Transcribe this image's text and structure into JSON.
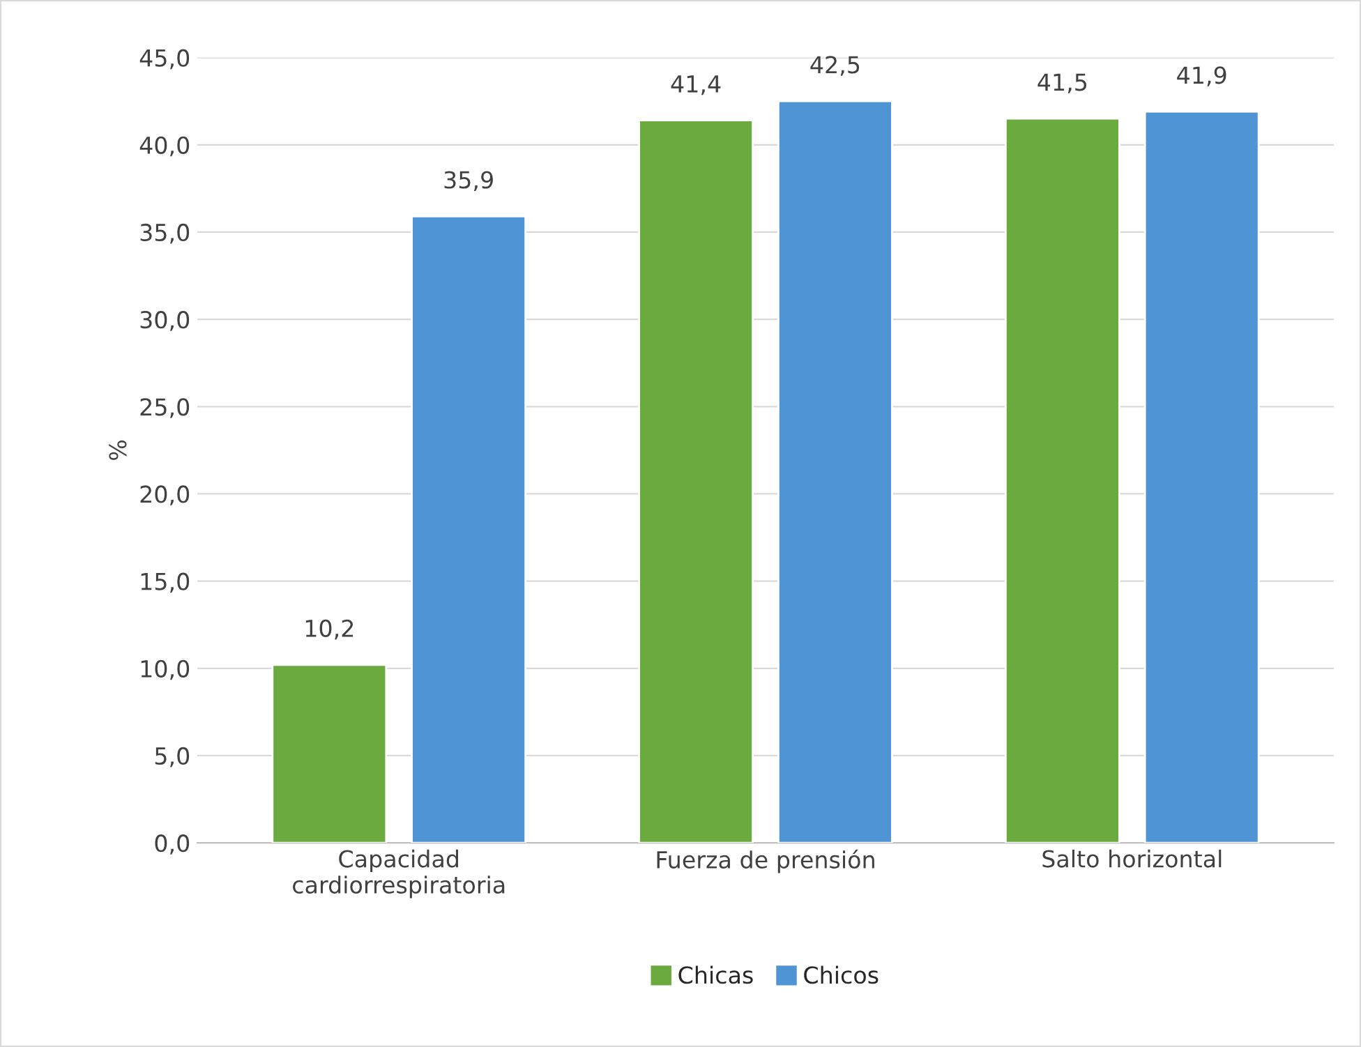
{
  "chart_data": {
    "type": "bar",
    "ylabel": "%",
    "categories": [
      "Capacidad\ncardiorrespiratoria",
      "Fuerza de prensión",
      "Salto horizontal"
    ],
    "series": [
      {
        "name": "Chicas",
        "color": "#6aaa3f",
        "values": [
          10.2,
          41.4,
          41.5
        ],
        "value_labels": [
          "10,2",
          "41,4",
          "41,5"
        ]
      },
      {
        "name": "Chicos",
        "color": "#4f94d4",
        "values": [
          35.9,
          42.5,
          41.9
        ],
        "value_labels": [
          "35,9",
          "42,5",
          "41,9"
        ]
      }
    ],
    "ylim": [
      0,
      45
    ],
    "yticks": [
      {
        "value": 0,
        "label": "0,0"
      },
      {
        "value": 5,
        "label": "5,0"
      },
      {
        "value": 10,
        "label": "10,0"
      },
      {
        "value": 15,
        "label": "15,0"
      },
      {
        "value": 20,
        "label": "20,0"
      },
      {
        "value": 25,
        "label": "25,0"
      },
      {
        "value": 30,
        "label": "30,0"
      },
      {
        "value": 35,
        "label": "35,0"
      },
      {
        "value": 40,
        "label": "40,0"
      },
      {
        "value": 45,
        "label": "45,0"
      }
    ],
    "grid": "y",
    "legend": "bottom"
  }
}
